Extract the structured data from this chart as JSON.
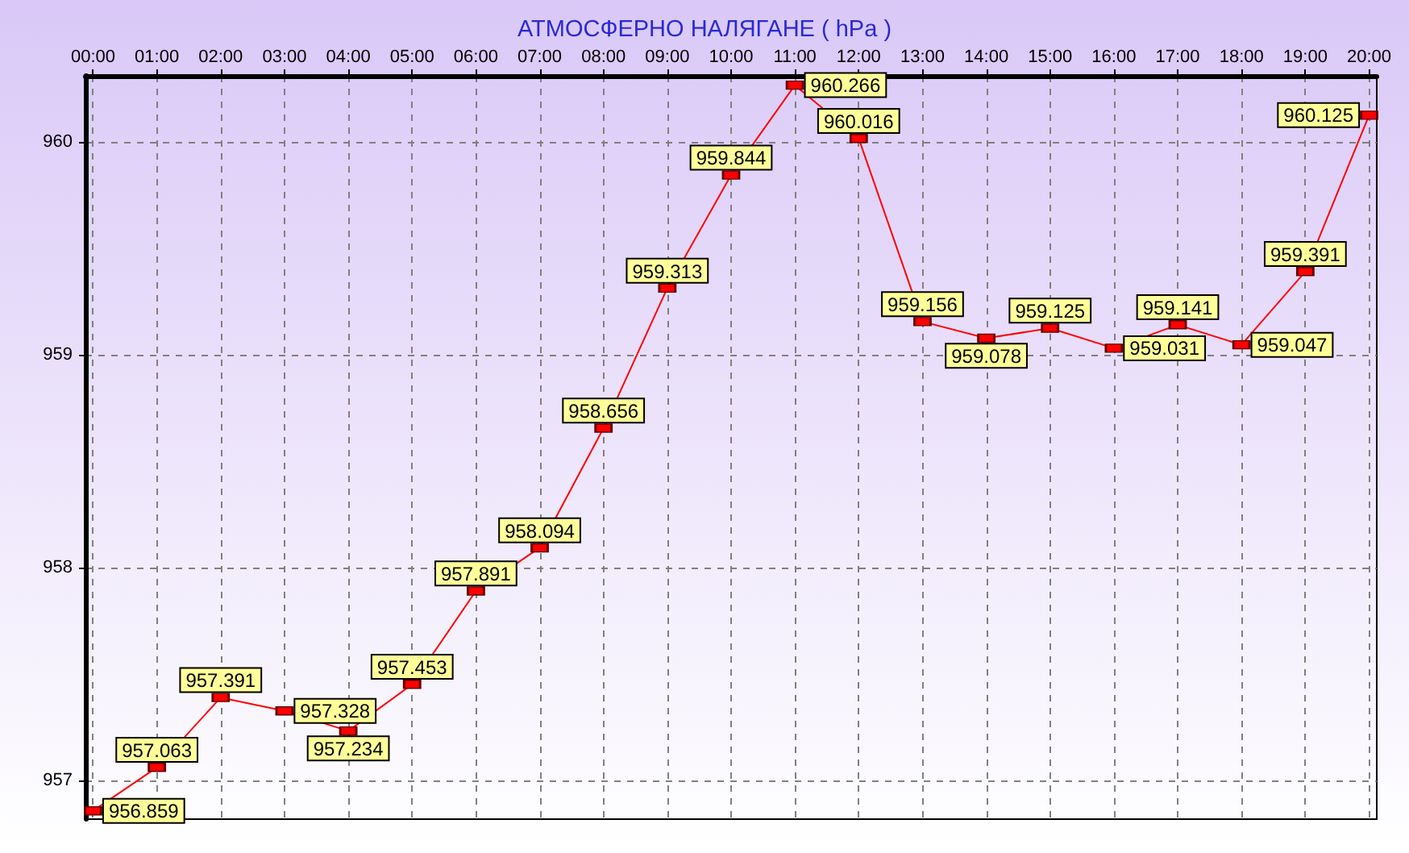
{
  "chart_data": {
    "type": "line",
    "title": "АТМОСФЕРНО НАЛЯГАНЕ ( hPa )",
    "x": [
      0,
      1,
      2,
      3,
      4,
      5,
      6,
      7,
      8,
      9,
      10,
      11,
      12,
      13,
      14,
      15,
      16,
      17,
      18,
      19,
      20
    ],
    "series": [
      {
        "color": "#ff0000",
        "values": [
          956.859,
          957.063,
          957.391,
          957.328,
          957.234,
          957.453,
          957.891,
          958.094,
          958.656,
          959.313,
          959.844,
          960.266,
          960.016,
          959.156,
          959.078,
          959.125,
          959.031,
          959.141,
          959.047,
          959.391,
          960.125
        ]
      }
    ],
    "xlim": [
      -0.12,
      20.12
    ],
    "xticks": [
      {
        "value": 0,
        "label": "00:00"
      },
      {
        "value": 1,
        "label": "01:00"
      },
      {
        "value": 2,
        "label": "02:00"
      },
      {
        "value": 3,
        "label": "03:00"
      },
      {
        "value": 4,
        "label": "04:00"
      },
      {
        "value": 5,
        "label": "05:00"
      },
      {
        "value": 6,
        "label": "06:00"
      },
      {
        "value": 7,
        "label": "07:00"
      },
      {
        "value": 8,
        "label": "08:00"
      },
      {
        "value": 9,
        "label": "09:00"
      },
      {
        "value": 10,
        "label": "10:00"
      },
      {
        "value": 11,
        "label": "11:00"
      },
      {
        "value": 12,
        "label": "12:00"
      },
      {
        "value": 13,
        "label": "13:00"
      },
      {
        "value": 14,
        "label": "14:00"
      },
      {
        "value": 15,
        "label": "15:00"
      },
      {
        "value": 16,
        "label": "16:00"
      },
      {
        "value": 17,
        "label": "17:00"
      },
      {
        "value": 18,
        "label": "18:00"
      },
      {
        "value": 19,
        "label": "19:00"
      },
      {
        "value": 20,
        "label": "20:00"
      }
    ],
    "ylim": [
      956.82,
      960.31
    ],
    "yticks": [
      957,
      958,
      959,
      960
    ],
    "grid": true,
    "marker": "square",
    "line_style": "solid",
    "data_labels": true
  }
}
